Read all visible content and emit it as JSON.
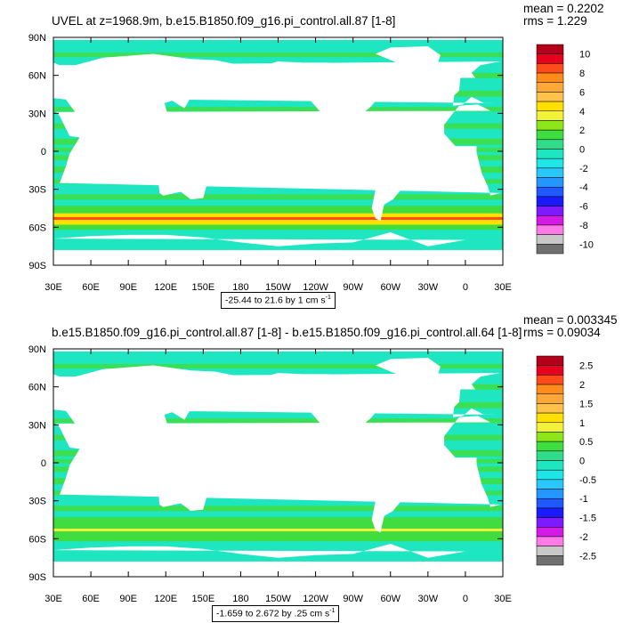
{
  "panels": [
    {
      "title": "UVEL at z=1968.9m, b.e15.B1850.f09_g16.pi_control.all.87 [1-8]",
      "mean_label": "mean = 0.2202",
      "rms_label": "rms = 1.229",
      "range_text": "-25.44 to 21.6 by 1 cm s",
      "range_unit_exp": "-1",
      "colorbar_labels": [
        "10",
        "8",
        "6",
        "4",
        "2",
        "0",
        "-2",
        "-4",
        "-6",
        "-8",
        "-10"
      ],
      "colorbar_colors": [
        "#b3001b",
        "#e8001f",
        "#ff4a1a",
        "#ff8c1a",
        "#ffa83a",
        "#ffc24a",
        "#ffe000",
        "#f2f23a",
        "#8ce61a",
        "#3fdd3f",
        "#2fdc8a",
        "#1ee6c0",
        "#1fe6e6",
        "#28c8ff",
        "#2696ff",
        "#1e5aff",
        "#1a1aff",
        "#7d1aff",
        "#d41ae6",
        "#ff7ae6",
        "#c8c8c8",
        "#707070"
      ],
      "ocean_color": "#1ee6c0",
      "band_color": "#3fdd3f"
    },
    {
      "title": "b.e15.B1850.f09_g16.pi_control.all.87 [1-8] - b.e15.B1850.f09_g16.pi_control.all.64 [1-8]",
      "mean_label": "mean = 0.003345",
      "rms_label": "rms = 0.09034",
      "range_text": "-1.659 to 2.672 by .25 cm s",
      "range_unit_exp": "-1",
      "colorbar_labels": [
        "2.5",
        "2",
        "1.5",
        "1",
        "0.5",
        "0",
        "-0.5",
        "-1",
        "-1.5",
        "-2",
        "-2.5"
      ],
      "colorbar_colors": [
        "#b3001b",
        "#e8001f",
        "#ff4a1a",
        "#ff8c1a",
        "#ffa83a",
        "#ffc24a",
        "#ffe000",
        "#f2f23a",
        "#8ce61a",
        "#3fdd3f",
        "#2fdc8a",
        "#1ee6c0",
        "#1fe6e6",
        "#28c8ff",
        "#2696ff",
        "#1e5aff",
        "#1a1aff",
        "#7d1aff",
        "#d41ae6",
        "#ff7ae6",
        "#c8c8c8",
        "#707070"
      ],
      "ocean_color": "#1ee6c0",
      "band_color": "#3fdd3f"
    }
  ],
  "map": {
    "lat_labels": [
      "90N",
      "60N",
      "30N",
      "0",
      "30S",
      "60S",
      "90S"
    ],
    "lon_labels": [
      "30E",
      "60E",
      "90E",
      "120E",
      "150E",
      "180",
      "150W",
      "120W",
      "90W",
      "60W",
      "30W",
      "0",
      "30E"
    ],
    "land_color": "#ffffff"
  }
}
